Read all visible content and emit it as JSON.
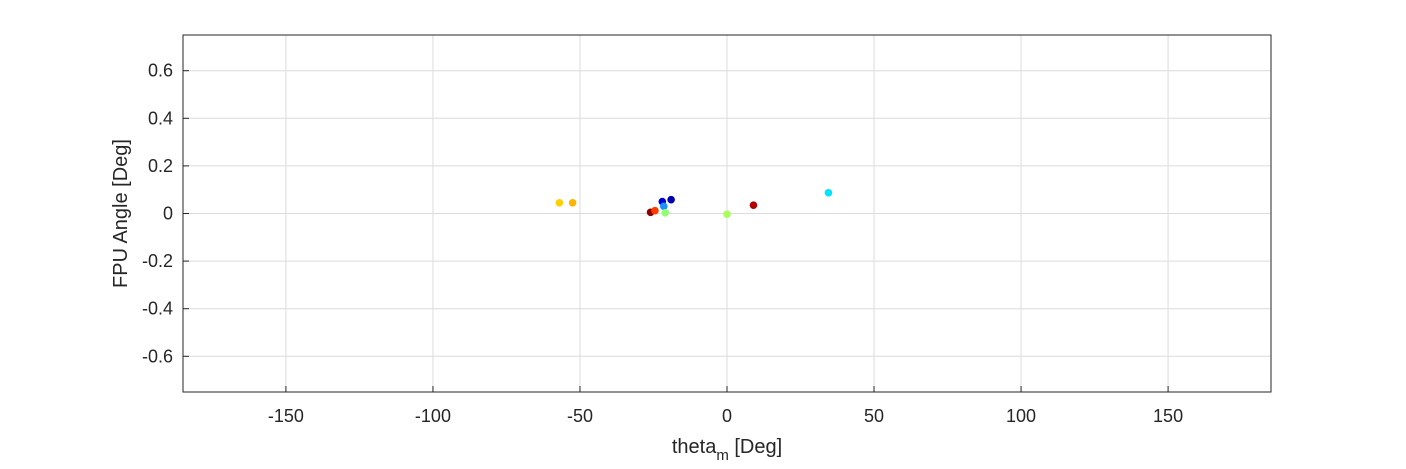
{
  "chart_data": {
    "type": "scatter",
    "title": "",
    "xlabel": {
      "base": "theta",
      "subscript": "m",
      "unit": " [Deg]"
    },
    "ylabel": "FPU Angle [Deg]",
    "xlim": [
      -185,
      185
    ],
    "ylim": [
      -0.75,
      0.75
    ],
    "xticks": [
      -150,
      -100,
      -50,
      0,
      50,
      100,
      150
    ],
    "yticks": [
      -0.6,
      -0.4,
      -0.2,
      0,
      0.2,
      0.4,
      0.6
    ],
    "xtick_labels": [
      "-150",
      "-100",
      "-50",
      "0",
      "50",
      "100",
      "150"
    ],
    "ytick_labels": [
      "-0.6",
      "-0.4",
      "-0.2",
      "0",
      "0.2",
      "0.4",
      "0.6"
    ],
    "grid": true,
    "points": [
      {
        "x": -57.0,
        "y": 0.045,
        "color": "#ffd000"
      },
      {
        "x": -52.5,
        "y": 0.045,
        "color": "#ffb400"
      },
      {
        "x": -26.0,
        "y": 0.005,
        "color": "#8b0000"
      },
      {
        "x": -24.5,
        "y": 0.012,
        "color": "#ff3c00"
      },
      {
        "x": -22.0,
        "y": 0.05,
        "color": "#0000d0"
      },
      {
        "x": -21.5,
        "y": 0.03,
        "color": "#1e90ff"
      },
      {
        "x": -21.0,
        "y": 0.003,
        "color": "#90ff70"
      },
      {
        "x": -19.0,
        "y": 0.058,
        "color": "#0000b0"
      },
      {
        "x": 0.0,
        "y": -0.003,
        "color": "#a8ff5a"
      },
      {
        "x": 9.0,
        "y": 0.035,
        "color": "#b00000"
      },
      {
        "x": 34.5,
        "y": 0.087,
        "color": "#00e5ff"
      }
    ]
  }
}
